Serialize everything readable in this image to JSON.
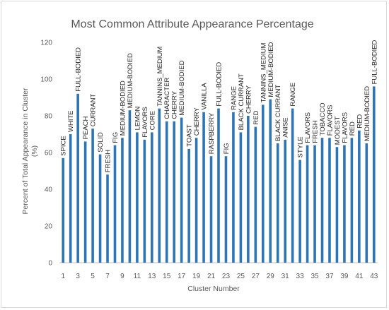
{
  "chart_data": {
    "type": "bar",
    "title": "Most Common Attribute Appearance Percentage",
    "xlabel": "Cluster Number",
    "ylabel": "Percent of Total Appearance in Cluster (%)",
    "ylabel_lines": [
      "Percent of Total Appearance in Cluster",
      "(%)"
    ],
    "ylim": [
      0,
      120
    ],
    "yticks": [
      0,
      20,
      40,
      60,
      80,
      100,
      120
    ],
    "xtick_labels": [
      "1",
      "3",
      "5",
      "7",
      "9",
      "11",
      "13",
      "15",
      "17",
      "19",
      "21",
      "23",
      "25",
      "27",
      "29",
      "31",
      "33",
      "35",
      "37",
      "39",
      "41",
      "43"
    ],
    "grid": false,
    "bar_color": "#2e75b6",
    "categories": [
      "1",
      "2",
      "3",
      "4",
      "5",
      "6",
      "7",
      "8",
      "9",
      "10",
      "11",
      "12",
      "13",
      "14",
      "15",
      "16",
      "17",
      "18",
      "19",
      "20",
      "21",
      "22",
      "23",
      "24",
      "25",
      "26",
      "27",
      "28",
      "29",
      "30",
      "31",
      "32",
      "33",
      "34",
      "35",
      "36",
      "37",
      "38",
      "39",
      "40",
      "41",
      "42",
      "43"
    ],
    "values": [
      57,
      70,
      92,
      66,
      73,
      59,
      48,
      64,
      68,
      83,
      71,
      67,
      71,
      84,
      77,
      77,
      79,
      62,
      68,
      82,
      58,
      84,
      58,
      82,
      71,
      80,
      74,
      86,
      89,
      65,
      67,
      84,
      56,
      64,
      64,
      68,
      68,
      63,
      64,
      68,
      72,
      65,
      96
    ],
    "data_labels": [
      "SPICE",
      "WHITE",
      "FULL-BODIED",
      "PEACH",
      "CURRANT",
      "SOLID",
      "FRESH",
      "FIG",
      "MEDIUM-BODIED",
      "MEDIUM-BODIED",
      "LEMON",
      "FLAVORS",
      "CORE",
      "TANNINS_MEDIUM",
      "CHARACTER",
      "CHERRY",
      "MEDIUM-BODIED",
      "TOAST",
      "CHERRY",
      "VANILLA",
      "RASPBERRY",
      "FULL-BODIED",
      "FIG",
      "RANGE",
      "BLACK CURRANT",
      "CHERRY",
      "RED",
      "TANNINS_MEDIUM",
      "MEDIUM-BODIED",
      "BLACK CURRANT",
      "ANISE",
      "RANGE",
      "STYLE",
      "FLAVORS",
      "FRESH",
      "TOBACCO",
      "FLAVORS",
      "MODEST",
      "FLAVORS",
      "RED",
      "RED",
      "MEDIUM-BODIED",
      "FULL-BODIED"
    ]
  }
}
